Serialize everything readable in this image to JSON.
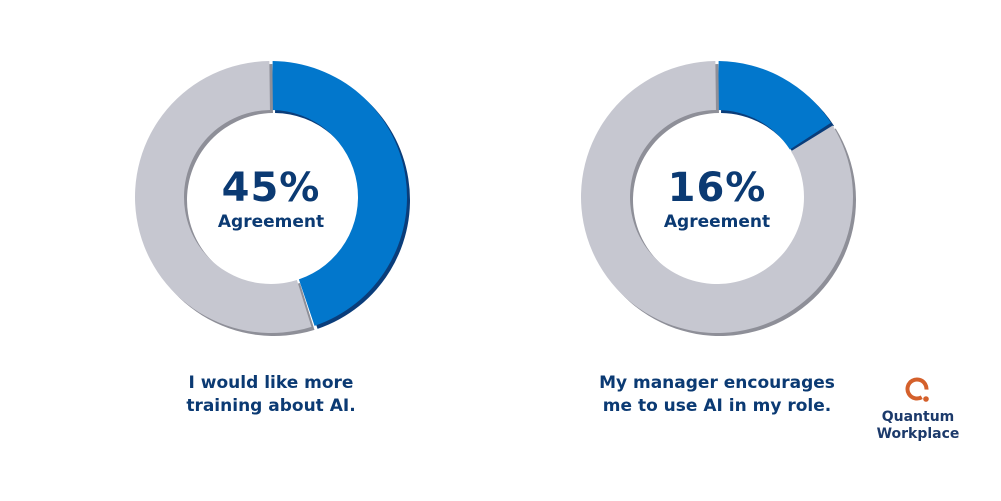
{
  "chart_data": [
    {
      "type": "pie",
      "variant": "donut",
      "values": [
        45,
        55
      ],
      "highlight_value": "45%",
      "center_label": "Agreement",
      "caption": "I would like more training about AI.",
      "colors": {
        "agree": "#0277cc",
        "rest": "#c6c7d0"
      }
    },
    {
      "type": "pie",
      "variant": "donut",
      "values": [
        16,
        84
      ],
      "highlight_value": "16%",
      "center_label": "Agreement",
      "caption": "My manager encourages me to use AI in my role.",
      "colors": {
        "agree": "#0277cc",
        "rest": "#c6c7d0"
      }
    }
  ],
  "captions": [
    [
      "I would like more",
      "training about AI."
    ],
    [
      "My manager encourages",
      "me to use AI in my role."
    ]
  ],
  "logo": {
    "line1": "Quantum",
    "line2": "Workplace",
    "color": "#d4602b"
  },
  "text_color": "#0b3a73"
}
